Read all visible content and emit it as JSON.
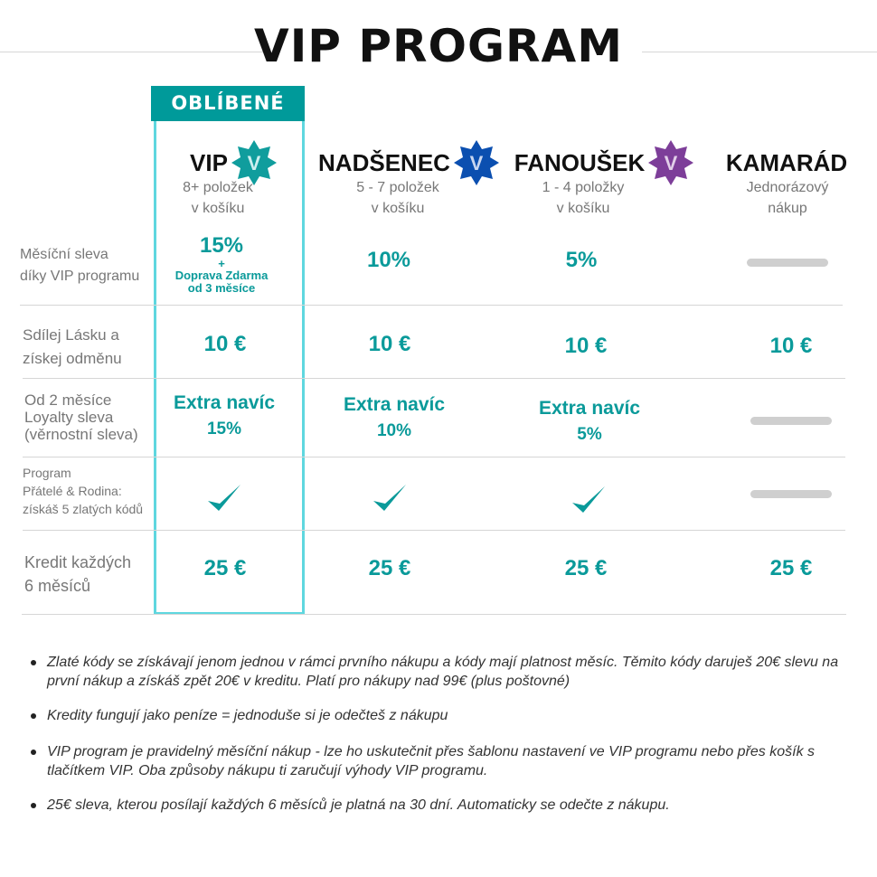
{
  "title": "VIP PROGRAM",
  "badge": "OBLÍBENÉ",
  "colors": {
    "accent": "#0a9a9a",
    "vip_star": "#109d9d",
    "nadsenec_star": "#0b4fb0",
    "fanousek_star": "#7d3e99",
    "vip_box": "#5fd7df",
    "dash": "#cfcfcf"
  },
  "tiers": [
    {
      "name": "VIP",
      "star_letter": "V",
      "sub1": "8+ položek",
      "sub2": "v košíku"
    },
    {
      "name": "NADŠENEC",
      "star_letter": "V",
      "sub1": "5 - 7 položek",
      "sub2": "v košíku"
    },
    {
      "name": "FANOUŠEK",
      "star_letter": "V",
      "sub1": "1 - 4 položky",
      "sub2": "v košíku"
    },
    {
      "name": "KAMARÁD",
      "sub1": "Jednorázový",
      "sub2": "nákup"
    }
  ],
  "rows": [
    {
      "label1": "Měsíční sleva",
      "label2": "díky VIP programu",
      "vip_main": "15%",
      "vip_plus": "+",
      "vip_extra1": "Doprava Zdarma",
      "vip_extra2": "od 3 měsíce",
      "nadsenec": "10%",
      "fanousek": "5%",
      "kamarad": "dash"
    },
    {
      "label1": "Sdílej Lásku a",
      "label2": "získej odměnu",
      "vip": "10 €",
      "nadsenec": "10 €",
      "fanousek": "10 €",
      "kamarad": "10 €"
    },
    {
      "label1": "Od 2 měsíce",
      "label2": "Loyalty sleva",
      "label3": "(věrnostní sleva)",
      "extra": "Extra navíc",
      "vip": "15%",
      "nadsenec": "10%",
      "fanousek": "5%",
      "kamarad": "dash"
    },
    {
      "label1": "Program",
      "label2": "Přátelé & Rodina:",
      "label3": "získáš 5 zlatých kódů",
      "vip": "check",
      "nadsenec": "check",
      "fanousek": "check",
      "kamarad": "dash"
    },
    {
      "label1": "Kredit každých",
      "label2": "6 měsíců",
      "vip": "25 €",
      "nadsenec": "25 €",
      "fanousek": "25 €",
      "kamarad": "25 €"
    }
  ],
  "notes": [
    " Zlaté kódy se získávají jenom jednou v rámci prvního nákupu a kódy mají platnost měsíc. Těmito kódy daruješ 20€ slevu na první nákup a získáš zpět 20€ v kreditu. Platí pro nákupy nad 99€ (plus poštovné)",
    "Kredity fungují jako peníze = jednoduše si je odečteš z nákupu",
    "VIP program je pravidelný měsíční nákup - lze ho uskutečnit přes šablonu nastavení ve VIP programu nebo přes košík s tlačítkem VIP. Oba způsoby nákupu ti zaručují výhody VIP programu.",
    "25€ sleva, kterou posílají každých 6 měsíců je platná na 30 dní. Automaticky se odečte z nákupu."
  ]
}
